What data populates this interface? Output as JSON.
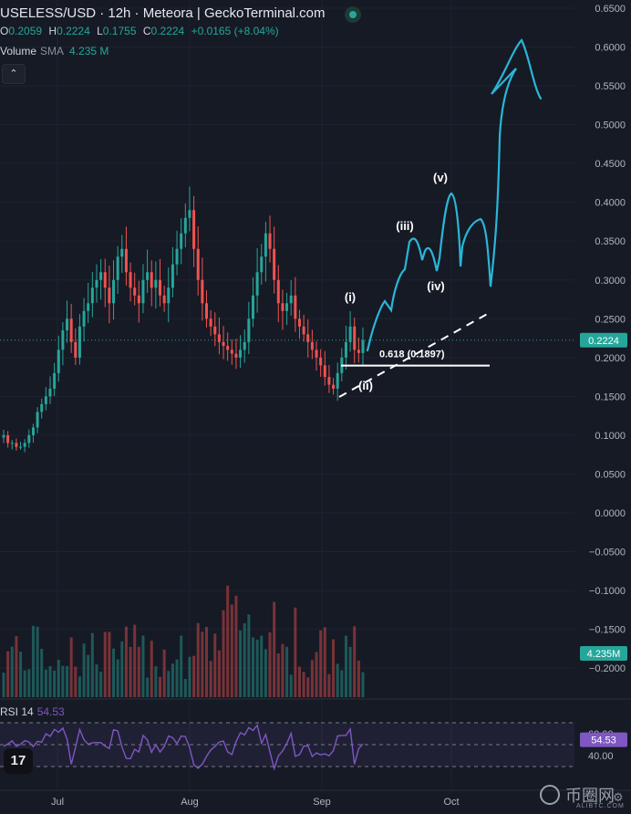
{
  "header": {
    "title": "USELESS/USD · 12h · Meteora | GeckoTerminal.com",
    "ohlc": {
      "o_label": "O",
      "o": "0.2059",
      "h_label": "H",
      "h": "0.2224",
      "l_label": "L",
      "l": "0.1755",
      "c_label": "C",
      "c": "0.2224",
      "change": "+0.0165 (+8.04%)"
    },
    "volume": {
      "label": "Volume",
      "sma": "SMA",
      "value": "4.235 M"
    }
  },
  "collapse_icon": "chevron-up-icon",
  "rsi_panel": {
    "label": "RSI 14",
    "value": "54.53"
  },
  "watermark": {
    "cn": "币圈网",
    "en": "ALIBTC.COM"
  },
  "colors": {
    "background": "#161a25",
    "up": "#26a69a",
    "down": "#ef5350",
    "projection": "#29b6d8",
    "rsi": "#7e57c2",
    "price_tag": "#26a69a"
  },
  "chart_data": {
    "type": "candlestick",
    "x_axis": {
      "ticks": [
        "Jul",
        "Aug",
        "Sep",
        "Oct"
      ]
    },
    "y_axis": {
      "range": [
        -0.2,
        0.65
      ],
      "ticks": [
        "0.6500",
        "0.6000",
        "0.5500",
        "0.5000",
        "0.4500",
        "0.4000",
        "0.3500",
        "0.3000",
        "0.2500",
        "0.2000",
        "0.1500",
        "0.1000",
        "0.0500",
        "0.0000",
        "−0.0500",
        "−0.1000",
        "−0.1500",
        "−0.2000"
      ]
    },
    "last_price": "0.2224",
    "last_volume": "4.235M",
    "price_series": [
      0.1,
      0.09,
      0.09,
      0.085,
      0.085,
      0.09,
      0.1,
      0.11,
      0.13,
      0.14,
      0.15,
      0.16,
      0.18,
      0.21,
      0.235,
      0.25,
      0.22,
      0.2,
      0.24,
      0.26,
      0.27,
      0.29,
      0.3,
      0.31,
      0.29,
      0.27,
      0.3,
      0.33,
      0.34,
      0.31,
      0.29,
      0.28,
      0.27,
      0.3,
      0.31,
      0.29,
      0.3,
      0.28,
      0.27,
      0.29,
      0.32,
      0.34,
      0.36,
      0.38,
      0.39,
      0.34,
      0.3,
      0.27,
      0.25,
      0.24,
      0.23,
      0.22,
      0.215,
      0.21,
      0.205,
      0.2,
      0.21,
      0.22,
      0.25,
      0.28,
      0.31,
      0.33,
      0.36,
      0.34,
      0.3,
      0.27,
      0.26,
      0.27,
      0.28,
      0.25,
      0.24,
      0.23,
      0.22,
      0.21,
      0.2,
      0.19,
      0.175,
      0.165,
      0.16,
      0.18,
      0.2,
      0.22,
      0.24,
      0.21,
      0.2059,
      0.2224
    ],
    "annotations": {
      "waves": [
        "(i)",
        "(ii)",
        "(iii)",
        "(iv)",
        "(v)"
      ],
      "fib_label": "0.618 (0.1897)",
      "fib_level": 0.1897
    },
    "projection_path": [
      [
        0.205,
        0.26
      ],
      [
        0.2,
        0.25
      ],
      [
        0.215,
        0.24
      ],
      [
        0.29,
        0.39
      ],
      [
        0.31,
        0.4
      ],
      [
        0.35,
        0.41
      ],
      [
        0.29,
        0.44
      ],
      [
        0.27,
        0.46
      ],
      [
        0.33,
        0.48
      ],
      [
        0.35,
        0.49
      ],
      [
        0.34,
        0.5
      ],
      [
        0.41,
        0.52
      ],
      [
        0.31,
        0.54
      ],
      [
        0.33,
        0.57
      ],
      [
        0.29,
        0.59
      ],
      [
        0.56,
        0.62
      ],
      [
        0.61,
        0.64
      ],
      [
        0.55,
        0.66
      ]
    ],
    "rsi": {
      "levels": [
        70,
        60,
        40,
        30
      ],
      "level_labels": [
        "60.00",
        "40.00"
      ],
      "last": "54.53"
    }
  }
}
